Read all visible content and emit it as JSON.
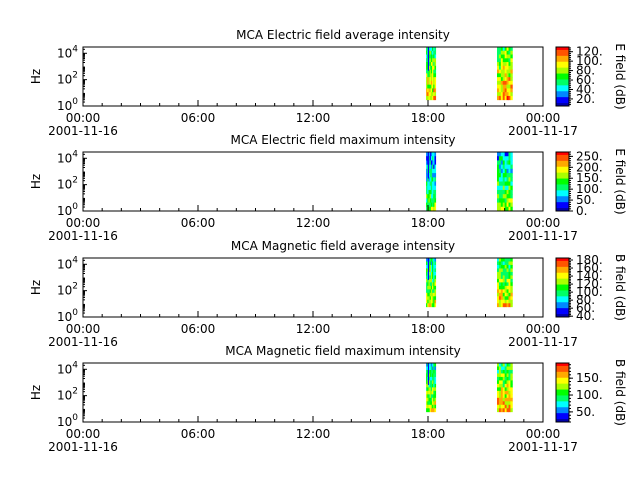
{
  "chart_data": [
    {
      "type": "heatmap",
      "title": "MCA  Electric field average intensity",
      "ylabel": "Hz",
      "y_scale": "log",
      "ylim": [
        1,
        30000
      ],
      "y_ticks": [
        {
          "base": "10",
          "exp": "0"
        },
        {
          "base": "10",
          "exp": "2"
        },
        {
          "base": "10",
          "exp": "4"
        }
      ],
      "colorbar": {
        "label": "E field (dB)",
        "range": [
          5,
          130
        ],
        "ticks": [
          "20.",
          "40.",
          "60.",
          "80.",
          "100.",
          "120."
        ],
        "tick_values": [
          20,
          40,
          60,
          80,
          100,
          120
        ]
      },
      "blocks": [
        {
          "t_start_h": 17.9,
          "t_end_h": 18.4,
          "f_low": 3,
          "f_high": 30000,
          "mean_db": 75
        },
        {
          "t_start_h": 21.6,
          "t_end_h": 22.4,
          "f_low": 3,
          "f_high": 30000,
          "mean_db": 85
        }
      ]
    },
    {
      "type": "heatmap",
      "title": "MCA  Electric field maximum intensity",
      "ylabel": "Hz",
      "y_scale": "log",
      "ylim": [
        1,
        30000
      ],
      "y_ticks": [
        {
          "base": "10",
          "exp": "0"
        },
        {
          "base": "10",
          "exp": "2"
        },
        {
          "base": "10",
          "exp": "4"
        }
      ],
      "colorbar": {
        "label": "E field (dB)",
        "range": [
          0,
          270
        ],
        "ticks": [
          "0.",
          "50.",
          "100.",
          "150.",
          "200.",
          "250."
        ],
        "tick_values": [
          0,
          50,
          100,
          150,
          200,
          250
        ]
      },
      "blocks": [
        {
          "t_start_h": 17.9,
          "t_end_h": 18.4,
          "f_low": 1,
          "f_high": 30000,
          "mean_db": 95
        },
        {
          "t_start_h": 21.6,
          "t_end_h": 22.4,
          "f_low": 1,
          "f_high": 30000,
          "mean_db": 115
        }
      ]
    },
    {
      "type": "heatmap",
      "title": "MCA  Magnetic field average intensity",
      "ylabel": "Hz",
      "y_scale": "log",
      "ylim": [
        1,
        30000
      ],
      "y_ticks": [
        {
          "base": "10",
          "exp": "0"
        },
        {
          "base": "10",
          "exp": "2"
        },
        {
          "base": "10",
          "exp": "4"
        }
      ],
      "colorbar": {
        "label": "B field (dB)",
        "range": [
          38,
          185
        ],
        "ticks": [
          "40.",
          "60.",
          "80.",
          "100.",
          "120.",
          "140.",
          "160.",
          "180."
        ],
        "tick_values": [
          40,
          60,
          80,
          100,
          120,
          140,
          160,
          180
        ]
      },
      "blocks": [
        {
          "t_start_h": 17.9,
          "t_end_h": 18.4,
          "f_low": 6,
          "f_high": 30000,
          "mean_db": 110
        },
        {
          "t_start_h": 21.6,
          "t_end_h": 22.4,
          "f_low": 6,
          "f_high": 30000,
          "mean_db": 120
        }
      ]
    },
    {
      "type": "heatmap",
      "title": "MCA  Magnetic field maximum intensity",
      "ylabel": "Hz",
      "y_scale": "log",
      "ylim": [
        1,
        30000
      ],
      "y_ticks": [
        {
          "base": "10",
          "exp": "0"
        },
        {
          "base": "10",
          "exp": "2"
        },
        {
          "base": "10",
          "exp": "4"
        }
      ],
      "colorbar": {
        "label": "B field (dB)",
        "range": [
          20,
          195
        ],
        "ticks": [
          "50.",
          "100.",
          "150."
        ],
        "tick_values": [
          50,
          100,
          150
        ]
      },
      "blocks": [
        {
          "t_start_h": 17.9,
          "t_end_h": 18.4,
          "f_low": 6,
          "f_high": 30000,
          "mean_db": 105
        },
        {
          "t_start_h": 21.6,
          "t_end_h": 22.4,
          "f_low": 6,
          "f_high": 30000,
          "mean_db": 125
        }
      ]
    }
  ],
  "x_axis": {
    "xlim_h": [
      0,
      24
    ],
    "major_ticks": [
      {
        "h": 0,
        "label": "00:00",
        "date": "2001-11-16"
      },
      {
        "h": 6,
        "label": "06:00",
        "date": ""
      },
      {
        "h": 12,
        "label": "12:00",
        "date": ""
      },
      {
        "h": 18,
        "label": "18:00",
        "date": ""
      },
      {
        "h": 24,
        "label": "00:00",
        "date": "2001-11-17"
      }
    ],
    "minor_step_h": 1
  },
  "colormap": [
    "#0000aa",
    "#0000ff",
    "#0088ff",
    "#00ffff",
    "#00ff66",
    "#00ff00",
    "#aaff00",
    "#ffff00",
    "#ffaa00",
    "#ff5500",
    "#ff0000"
  ]
}
